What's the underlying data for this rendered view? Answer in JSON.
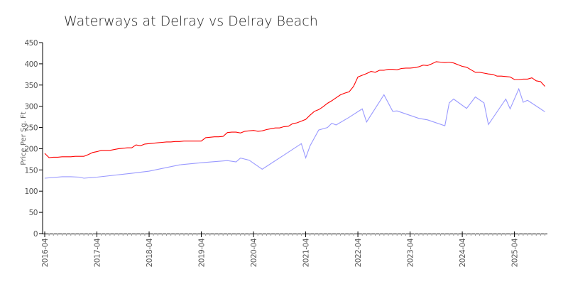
{
  "chart_data": {
    "type": "line",
    "title": "Waterways at Delray vs Delray Beach",
    "xlabel": "",
    "ylabel": "Price Per Sq. Ft",
    "ylim": [
      0,
      450
    ],
    "xlim": [
      "2016-04",
      "2025-11"
    ],
    "yticks": [
      0,
      50,
      100,
      150,
      200,
      250,
      300,
      350,
      400,
      450
    ],
    "xticks": [
      "2016-04",
      "2017-04",
      "2018-04",
      "2019-04",
      "2020-04",
      "2021-04",
      "2022-04",
      "2023-04",
      "2024-04",
      "2025-04"
    ],
    "grid": false,
    "legend": "none",
    "x": [
      "2016-04",
      "2016-05",
      "2016-06",
      "2016-07",
      "2016-08",
      "2016-09",
      "2016-10",
      "2016-11",
      "2016-12",
      "2017-01",
      "2017-02",
      "2017-03",
      "2017-04",
      "2017-05",
      "2017-06",
      "2017-07",
      "2017-08",
      "2017-09",
      "2017-10",
      "2017-11",
      "2017-12",
      "2018-01",
      "2018-02",
      "2018-03",
      "2018-04",
      "2018-05",
      "2018-06",
      "2018-07",
      "2018-08",
      "2018-09",
      "2018-10",
      "2018-11",
      "2018-12",
      "2019-01",
      "2019-02",
      "2019-03",
      "2019-04",
      "2019-05",
      "2019-06",
      "2019-07",
      "2019-08",
      "2019-09",
      "2019-10",
      "2019-11",
      "2019-12",
      "2020-01",
      "2020-02",
      "2020-03",
      "2020-04",
      "2020-05",
      "2020-06",
      "2020-07",
      "2020-08",
      "2020-09",
      "2020-10",
      "2020-11",
      "2020-12",
      "2021-01",
      "2021-02",
      "2021-03",
      "2021-04",
      "2021-05",
      "2021-06",
      "2021-07",
      "2021-08",
      "2021-09",
      "2021-10",
      "2021-11",
      "2021-12",
      "2022-01",
      "2022-02",
      "2022-03",
      "2022-04",
      "2022-05",
      "2022-06",
      "2022-07",
      "2022-08",
      "2022-09",
      "2022-10",
      "2022-11",
      "2022-12",
      "2023-01",
      "2023-02",
      "2023-03",
      "2023-04",
      "2023-05",
      "2023-06",
      "2023-07",
      "2023-08",
      "2023-09",
      "2023-10",
      "2023-11",
      "2023-12",
      "2024-01",
      "2024-02",
      "2024-03",
      "2024-04",
      "2024-05",
      "2024-06",
      "2024-07",
      "2024-08",
      "2024-09",
      "2024-10",
      "2024-11",
      "2024-12",
      "2025-01",
      "2025-02",
      "2025-03",
      "2025-04",
      "2025-05",
      "2025-06",
      "2025-07",
      "2025-08",
      "2025-09",
      "2025-10",
      "2025-11"
    ],
    "series": [
      {
        "color": "#ff0000",
        "values": [
          189,
          179,
          180,
          180,
          181,
          181,
          181,
          182,
          182,
          182,
          186,
          191,
          193,
          196,
          196,
          196,
          198,
          200,
          201,
          202,
          202,
          209,
          207,
          211,
          212,
          213,
          214,
          215,
          216,
          216,
          217,
          217,
          218,
          218,
          218,
          218,
          218,
          226,
          227,
          228,
          228,
          229,
          238,
          239,
          239,
          237,
          241,
          242,
          243,
          241,
          242,
          245,
          247,
          249,
          249,
          252,
          253,
          259,
          261,
          265,
          269,
          279,
          288,
          292,
          299,
          307,
          313,
          320,
          327,
          331,
          334,
          347,
          369,
          373,
          377,
          382,
          380,
          385,
          385,
          387,
          387,
          386,
          389,
          390,
          390,
          391,
          393,
          397,
          396,
          400,
          405,
          404,
          403,
          404,
          402,
          398,
          394,
          392,
          386,
          380,
          380,
          378,
          376,
          375,
          371,
          371,
          370,
          369,
          363,
          363,
          364,
          364,
          367,
          360,
          358,
          347
        ]
      },
      {
        "color": "#9999ff",
        "x": [
          "2016-04",
          "2016-08",
          "2016-10",
          "2016-12",
          "2017-01",
          "2017-04",
          "2017-12",
          "2018-04",
          "2018-11",
          "2019-04",
          "2019-10",
          "2019-12",
          "2020-01",
          "2020-03",
          "2020-06",
          "2020-11",
          "2021-03",
          "2021-04",
          "2021-05",
          "2021-07",
          "2021-09",
          "2021-10",
          "2021-11",
          "2022-02",
          "2022-05",
          "2022-06",
          "2022-10",
          "2022-12",
          "2023-01",
          "2023-06",
          "2023-08",
          "2023-12",
          "2024-01",
          "2024-02",
          "2024-05",
          "2024-07",
          "2024-09",
          "2024-10",
          "2025-02",
          "2025-03",
          "2025-05",
          "2025-06",
          "2025-07",
          "2025-11"
        ],
        "values": [
          130.5,
          134,
          134,
          133,
          130.5,
          133,
          142,
          147,
          162,
          167,
          172,
          169,
          178,
          173,
          151.7,
          185,
          212,
          178.5,
          207,
          244,
          250,
          260,
          256,
          274,
          294,
          263,
          327,
          288,
          289,
          271.5,
          268,
          254,
          308,
          317,
          295,
          322,
          308,
          257,
          317,
          294,
          341,
          309.5,
          314,
          287
        ]
      }
    ]
  }
}
